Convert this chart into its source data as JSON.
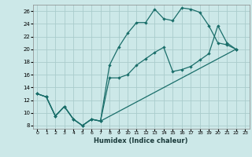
{
  "xlabel": "Humidex (Indice chaleur)",
  "bg_color": "#cce8e8",
  "grid_color": "#aacccc",
  "line_color": "#1a6e6a",
  "xlim": [
    -0.5,
    23.5
  ],
  "ylim": [
    7.5,
    27.0
  ],
  "xticks": [
    0,
    1,
    2,
    3,
    4,
    5,
    6,
    7,
    8,
    9,
    10,
    11,
    12,
    13,
    14,
    15,
    16,
    17,
    18,
    19,
    20,
    21,
    22,
    23
  ],
  "yticks": [
    8,
    10,
    12,
    14,
    16,
    18,
    20,
    22,
    24,
    26
  ],
  "line1_x": [
    0,
    1,
    2,
    3,
    4,
    5,
    6,
    7,
    8,
    9,
    10,
    11,
    12,
    13,
    14,
    15,
    16,
    17,
    18,
    19,
    20,
    21,
    22
  ],
  "line1_y": [
    13,
    12.5,
    9.5,
    11,
    9,
    8,
    9,
    8.7,
    17.5,
    20.3,
    22.5,
    24.2,
    24.2,
    26.3,
    24.8,
    24.5,
    26.5,
    26.3,
    25.8,
    23.7,
    21.0,
    20.7,
    20.0
  ],
  "line2_x": [
    0,
    1,
    2,
    3,
    4,
    5,
    6,
    7,
    8,
    9,
    10,
    11,
    12,
    13,
    14,
    15,
    16,
    17,
    18,
    19,
    20,
    21,
    22
  ],
  "line2_y": [
    13,
    12.5,
    9.5,
    11,
    9,
    8,
    9,
    8.7,
    15.5,
    15.5,
    16.0,
    17.5,
    18.5,
    19.5,
    20.3,
    16.5,
    16.8,
    17.3,
    18.3,
    19.3,
    23.7,
    21.0,
    20.0
  ],
  "line3_x": [
    0,
    1,
    2,
    3,
    4,
    5,
    6,
    7,
    22
  ],
  "line3_y": [
    13,
    12.5,
    9.5,
    11,
    9,
    8,
    9,
    8.7,
    20.0
  ]
}
